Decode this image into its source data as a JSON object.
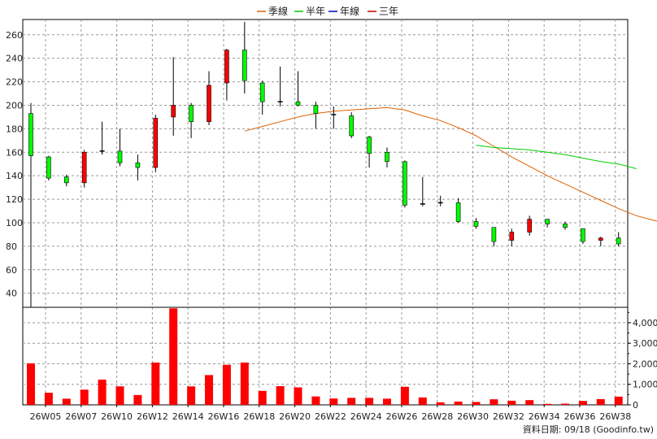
{
  "legend": [
    {
      "label": "季線",
      "color": "#e06000"
    },
    {
      "label": "半年",
      "color": "#00cc00"
    },
    {
      "label": "年線",
      "color": "#0000cc"
    },
    {
      "label": "三年",
      "color": "#cc0000"
    }
  ],
  "credit": "資料日期: 09/18 (Goodinfo.tw)",
  "chart_data": {
    "type": "candlestick",
    "x_tick_labels": [
      "26W05",
      "26W07",
      "26W10",
      "26W12",
      "26W14",
      "26W16",
      "26W18",
      "26W20",
      "26W22",
      "26W24",
      "26W26",
      "26W28",
      "26W30",
      "26W32",
      "26W34",
      "26W36",
      "26W38"
    ],
    "price_axis": {
      "ticks": [
        40,
        60,
        80,
        100,
        120,
        140,
        160,
        180,
        200,
        220,
        240,
        260
      ],
      "range": [
        28,
        273
      ]
    },
    "volume_axis": {
      "ticks": [
        0,
        1000,
        2000,
        3000,
        4000
      ],
      "tick_labels": [
        "0",
        "1,000",
        "2,000",
        "3,000",
        "4,000"
      ],
      "range": [
        0,
        4750
      ]
    },
    "grid": true,
    "up_color": "#ff0000",
    "down_color": "#00ff00",
    "candles": [
      {
        "o": 193,
        "h": 202,
        "l": 28,
        "c": 157
      },
      {
        "o": 156,
        "h": 157,
        "l": 136,
        "c": 138
      },
      {
        "o": 139,
        "h": 141,
        "l": 131,
        "c": 134
      },
      {
        "o": 134,
        "h": 162,
        "l": 130,
        "c": 160
      },
      {
        "o": 161,
        "h": 186,
        "l": 158,
        "c": 161
      },
      {
        "o": 161,
        "h": 180,
        "l": 148,
        "c": 151
      },
      {
        "o": 151,
        "h": 158,
        "l": 136,
        "c": 147
      },
      {
        "o": 147,
        "h": 192,
        "l": 143,
        "c": 189
      },
      {
        "o": 190,
        "h": 241,
        "l": 174,
        "c": 200
      },
      {
        "o": 200,
        "h": 202,
        "l": 172,
        "c": 186
      },
      {
        "o": 186,
        "h": 229,
        "l": 183,
        "c": 217
      },
      {
        "o": 219,
        "h": 248,
        "l": 204,
        "c": 247
      },
      {
        "o": 247,
        "h": 271,
        "l": 210,
        "c": 221
      },
      {
        "o": 219,
        "h": 221,
        "l": 192,
        "c": 203
      },
      {
        "o": 203,
        "h": 233,
        "l": 199,
        "c": 203
      },
      {
        "o": 203,
        "h": 229,
        "l": 199,
        "c": 200
      },
      {
        "o": 200,
        "h": 203,
        "l": 180,
        "c": 193
      },
      {
        "o": 192,
        "h": 199,
        "l": 180,
        "c": 191
      },
      {
        "o": 191,
        "h": 194,
        "l": 172,
        "c": 174
      },
      {
        "o": 173,
        "h": 174,
        "l": 147,
        "c": 159
      },
      {
        "o": 160,
        "h": 164,
        "l": 147,
        "c": 152
      },
      {
        "o": 152,
        "h": 153,
        "l": 113,
        "c": 115
      },
      {
        "o": 116,
        "h": 139,
        "l": 114,
        "c": 116
      },
      {
        "o": 117,
        "h": 123,
        "l": 114,
        "c": 116
      },
      {
        "o": 117,
        "h": 121,
        "l": 100,
        "c": 101
      },
      {
        "o": 101,
        "h": 104,
        "l": 95,
        "c": 97
      },
      {
        "o": 96,
        "h": 96,
        "l": 80,
        "c": 84
      },
      {
        "o": 85,
        "h": 95,
        "l": 80,
        "c": 92
      },
      {
        "o": 92,
        "h": 106,
        "l": 89,
        "c": 103
      },
      {
        "o": 103,
        "h": 103,
        "l": 96,
        "c": 99
      },
      {
        "o": 99,
        "h": 101,
        "l": 94,
        "c": 96
      },
      {
        "o": 95,
        "h": 95,
        "l": 82,
        "c": 84
      },
      {
        "o": 85,
        "h": 88,
        "l": 80,
        "c": 87
      },
      {
        "o": 87,
        "h": 92,
        "l": 80,
        "c": 82
      }
    ],
    "volumes": [
      2020,
      590,
      300,
      740,
      1230,
      900,
      480,
      2060,
      4700,
      900,
      1450,
      1950,
      2060,
      680,
      910,
      850,
      410,
      310,
      340,
      340,
      300,
      880,
      360,
      120,
      160,
      140,
      270,
      200,
      230,
      50,
      60,
      190,
      280,
      400
    ],
    "series": [
      {
        "name": "季線",
        "color": "#e06000",
        "start_index": 12,
        "values": [
          178,
          182,
          186,
          190,
          193,
          195,
          196,
          197,
          198,
          196,
          191,
          187,
          181,
          174,
          165,
          156,
          148,
          140,
          133,
          126,
          119,
          112,
          106,
          102,
          98
        ]
      },
      {
        "name": "半年",
        "color": "#00cc00",
        "start_index": 25,
        "values": [
          166,
          164,
          163,
          162,
          160,
          158,
          155,
          152,
          150,
          146
        ]
      }
    ]
  }
}
